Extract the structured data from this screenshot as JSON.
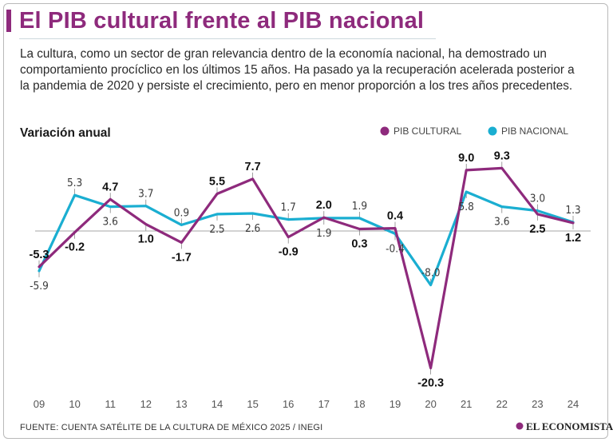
{
  "header": {
    "title": "El PIB cultural frente al PIB nacional",
    "intro": "La cultura, como un sector de gran relevancia dentro de la economía nacional, ha demostrado un comportamiento procíclico en los últimos 15 años. Ha pasado ya la recuperación acelerada posterior a la pandemia de 2020 y persiste el crecimiento, pero en menor proporción a los tres años precedentes."
  },
  "colors": {
    "accent": "#8e2a7c",
    "cultural": "#8e2a7c",
    "nacional": "#1aaed1",
    "gridline": "#888888"
  },
  "chart_data": {
    "type": "line",
    "title": "Variación anual",
    "categories": [
      "09",
      "10",
      "11",
      "12",
      "13",
      "14",
      "15",
      "16",
      "17",
      "18",
      "19",
      "20",
      "21",
      "22",
      "23",
      "24"
    ],
    "series": [
      {
        "name": "PIB CULTURAL",
        "color": "#8e2a7c",
        "values": [
          -5.3,
          -0.2,
          4.7,
          1.0,
          -1.7,
          5.5,
          7.7,
          -0.9,
          2.0,
          0.3,
          0.4,
          -20.3,
          9.0,
          9.3,
          2.5,
          1.2
        ],
        "labels": [
          "-5.3",
          "-0.2",
          "4.7",
          "1.0",
          "-1.7",
          "5.5",
          "7.7",
          "-0.9",
          "2.0",
          "0.3",
          "0.4",
          "-20.3",
          "9.0",
          "9.3",
          "2.5",
          "1.2"
        ]
      },
      {
        "name": "PIB NACIONAL",
        "color": "#1aaed1",
        "values": [
          -5.9,
          5.3,
          3.6,
          3.7,
          0.9,
          2.5,
          2.6,
          1.7,
          1.9,
          1.9,
          -0.4,
          -8.0,
          5.8,
          3.6,
          3.0,
          1.3
        ],
        "labels": [
          "-5.9",
          "5.3",
          "3.6",
          "3.7",
          "0.9",
          "2.5",
          "2.6",
          "1.7",
          "1.9",
          "1.9",
          "-0.4",
          "-8.0",
          "5.8",
          "3.6",
          "3.0",
          "1.3"
        ]
      }
    ],
    "ylim": [
      -21,
      10
    ],
    "grid": false,
    "legend": "top-right",
    "zero_line": true
  },
  "footer": {
    "source": "FUENTE: CUENTA SATÉLITE DE LA CULTURA DE MÉXICO 2025 / INEGI",
    "logo": "EL ECONOMISTA"
  }
}
